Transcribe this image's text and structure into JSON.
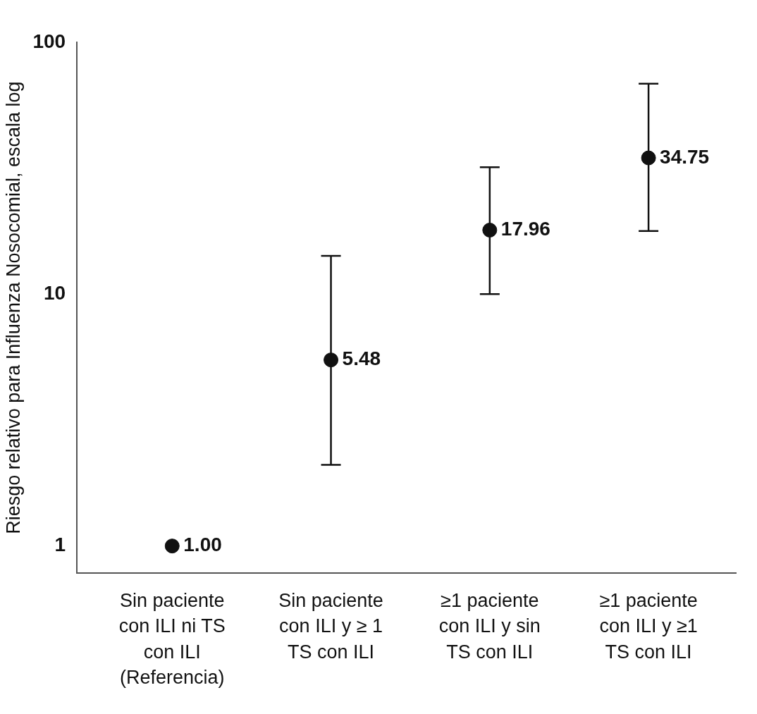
{
  "chart_data": {
    "type": "scatter",
    "ylabel": "Riesgo relativo para Influenza Nosocomial, escala log",
    "categories": [
      "Sin paciente\ncon ILI ni TS\ncon ILI\n(Referencia)",
      "Sin paciente\ncon ILI y ≥ 1\nTS con ILI",
      "≥1 paciente\ncon ILI y sin\nTS con ILI",
      "≥1 paciente\ncon ILI y ≥1\nTS con ILI"
    ],
    "values": [
      1.0,
      5.48,
      17.96,
      34.75
    ],
    "errors": [
      null,
      [
        2.1,
        14.2
      ],
      [
        10.0,
        31.9
      ],
      [
        17.8,
        68.5
      ]
    ],
    "value_labels": [
      "1.00",
      "5.48",
      "17.96",
      "34.75"
    ],
    "color": "#111111",
    "marker": "circle",
    "log": "y",
    "grid": false,
    "legend": false,
    "ylim": [
      0.78,
      100
    ],
    "yticks": [
      1,
      10,
      100
    ]
  }
}
